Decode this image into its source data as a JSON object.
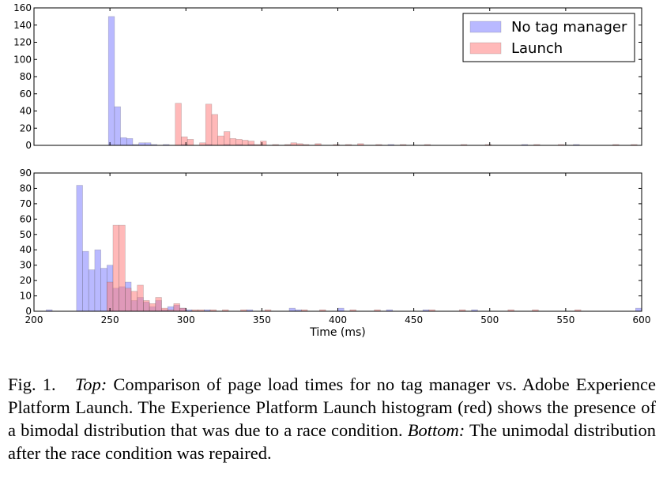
{
  "chart_data": [
    {
      "type": "bar",
      "panel": "top",
      "xlim": [
        200,
        600
      ],
      "ylim": [
        0,
        160
      ],
      "yticks": [
        0,
        20,
        40,
        60,
        80,
        100,
        120,
        140,
        160
      ],
      "xticks": [
        200,
        250,
        300,
        350,
        400,
        450,
        500,
        550,
        600
      ],
      "show_xtick_labels": false,
      "legend": {
        "position": "top-right",
        "entries": [
          "No tag manager",
          "Launch"
        ]
      },
      "series": [
        {
          "name": "No tag manager",
          "color": "#8080ff",
          "bins": [
            {
              "start": 249,
              "end": 253,
              "value": 150
            },
            {
              "start": 253,
              "end": 257,
              "value": 45
            },
            {
              "start": 257,
              "end": 261,
              "value": 9
            },
            {
              "start": 261,
              "end": 265,
              "value": 8
            },
            {
              "start": 265,
              "end": 269,
              "value": 1
            },
            {
              "start": 269,
              "end": 273,
              "value": 3
            },
            {
              "start": 273,
              "end": 277,
              "value": 3
            },
            {
              "start": 277,
              "end": 281,
              "value": 1
            },
            {
              "start": 285,
              "end": 289,
              "value": 1
            },
            {
              "start": 297,
              "end": 301,
              "value": 1
            },
            {
              "start": 313,
              "end": 317,
              "value": 1
            },
            {
              "start": 325,
              "end": 329,
              "value": 1
            },
            {
              "start": 333,
              "end": 337,
              "value": 1
            },
            {
              "start": 341,
              "end": 345,
              "value": 1
            },
            {
              "start": 433,
              "end": 437,
              "value": 1
            },
            {
              "start": 521,
              "end": 525,
              "value": 1
            },
            {
              "start": 555,
              "end": 559,
              "value": 1
            }
          ]
        },
        {
          "name": "Launch",
          "color": "#ff8080",
          "bins": [
            {
              "start": 293,
              "end": 297,
              "value": 49
            },
            {
              "start": 297,
              "end": 301,
              "value": 10
            },
            {
              "start": 301,
              "end": 305,
              "value": 7
            },
            {
              "start": 309,
              "end": 313,
              "value": 3
            },
            {
              "start": 313,
              "end": 317,
              "value": 48
            },
            {
              "start": 317,
              "end": 321,
              "value": 36
            },
            {
              "start": 321,
              "end": 325,
              "value": 11
            },
            {
              "start": 325,
              "end": 329,
              "value": 16
            },
            {
              "start": 329,
              "end": 333,
              "value": 8
            },
            {
              "start": 333,
              "end": 337,
              "value": 7
            },
            {
              "start": 337,
              "end": 341,
              "value": 6
            },
            {
              "start": 341,
              "end": 345,
              "value": 5
            },
            {
              "start": 345,
              "end": 349,
              "value": 1
            },
            {
              "start": 349,
              "end": 353,
              "value": 5
            },
            {
              "start": 357,
              "end": 361,
              "value": 1
            },
            {
              "start": 365,
              "end": 369,
              "value": 1
            },
            {
              "start": 369,
              "end": 373,
              "value": 3
            },
            {
              "start": 373,
              "end": 377,
              "value": 2
            },
            {
              "start": 377,
              "end": 381,
              "value": 1
            },
            {
              "start": 385,
              "end": 389,
              "value": 2
            },
            {
              "start": 397,
              "end": 401,
              "value": 1
            },
            {
              "start": 405,
              "end": 409,
              "value": 1
            },
            {
              "start": 413,
              "end": 417,
              "value": 2
            },
            {
              "start": 425,
              "end": 429,
              "value": 1
            },
            {
              "start": 441,
              "end": 445,
              "value": 1
            },
            {
              "start": 457,
              "end": 461,
              "value": 1
            },
            {
              "start": 481,
              "end": 485,
              "value": 1
            },
            {
              "start": 497,
              "end": 501,
              "value": 1
            },
            {
              "start": 529,
              "end": 533,
              "value": 1
            },
            {
              "start": 545,
              "end": 549,
              "value": 1
            },
            {
              "start": 581,
              "end": 585,
              "value": 1
            },
            {
              "start": 593,
              "end": 597,
              "value": 1
            }
          ]
        }
      ]
    },
    {
      "type": "bar",
      "panel": "bottom",
      "xlabel": "Time (ms)",
      "xlim": [
        200,
        600
      ],
      "ylim": [
        0,
        90
      ],
      "yticks": [
        0,
        10,
        20,
        30,
        40,
        50,
        60,
        70,
        80,
        90
      ],
      "xticks": [
        200,
        250,
        300,
        350,
        400,
        450,
        500,
        550,
        600
      ],
      "show_xtick_labels": true,
      "series": [
        {
          "name": "No tag manager",
          "color": "#8080ff",
          "bins": [
            {
              "start": 208,
              "end": 212,
              "value": 1
            },
            {
              "start": 228,
              "end": 232,
              "value": 82
            },
            {
              "start": 232,
              "end": 236,
              "value": 39
            },
            {
              "start": 236,
              "end": 240,
              "value": 27
            },
            {
              "start": 240,
              "end": 244,
              "value": 40
            },
            {
              "start": 244,
              "end": 248,
              "value": 28
            },
            {
              "start": 248,
              "end": 252,
              "value": 30
            },
            {
              "start": 252,
              "end": 256,
              "value": 15
            },
            {
              "start": 256,
              "end": 260,
              "value": 16
            },
            {
              "start": 260,
              "end": 264,
              "value": 19
            },
            {
              "start": 264,
              "end": 268,
              "value": 7
            },
            {
              "start": 268,
              "end": 272,
              "value": 9
            },
            {
              "start": 272,
              "end": 276,
              "value": 6
            },
            {
              "start": 276,
              "end": 280,
              "value": 3
            },
            {
              "start": 280,
              "end": 284,
              "value": 7
            },
            {
              "start": 284,
              "end": 288,
              "value": 1
            },
            {
              "start": 288,
              "end": 292,
              "value": 3
            },
            {
              "start": 292,
              "end": 296,
              "value": 4
            },
            {
              "start": 296,
              "end": 300,
              "value": 2
            },
            {
              "start": 300,
              "end": 304,
              "value": 1
            },
            {
              "start": 312,
              "end": 316,
              "value": 1
            },
            {
              "start": 340,
              "end": 344,
              "value": 1
            },
            {
              "start": 368,
              "end": 372,
              "value": 2
            },
            {
              "start": 372,
              "end": 376,
              "value": 1
            },
            {
              "start": 400,
              "end": 404,
              "value": 2
            },
            {
              "start": 432,
              "end": 436,
              "value": 1
            },
            {
              "start": 456,
              "end": 460,
              "value": 1
            },
            {
              "start": 488,
              "end": 492,
              "value": 1
            },
            {
              "start": 596,
              "end": 600,
              "value": 2
            }
          ]
        },
        {
          "name": "Launch",
          "color": "#ff8080",
          "bins": [
            {
              "start": 248,
              "end": 252,
              "value": 19
            },
            {
              "start": 252,
              "end": 256,
              "value": 56
            },
            {
              "start": 256,
              "end": 260,
              "value": 56
            },
            {
              "start": 260,
              "end": 264,
              "value": 15
            },
            {
              "start": 264,
              "end": 268,
              "value": 13
            },
            {
              "start": 268,
              "end": 272,
              "value": 17
            },
            {
              "start": 272,
              "end": 276,
              "value": 7
            },
            {
              "start": 276,
              "end": 280,
              "value": 5
            },
            {
              "start": 280,
              "end": 284,
              "value": 9
            },
            {
              "start": 284,
              "end": 288,
              "value": 2
            },
            {
              "start": 288,
              "end": 292,
              "value": 1
            },
            {
              "start": 292,
              "end": 296,
              "value": 5
            },
            {
              "start": 296,
              "end": 300,
              "value": 2
            },
            {
              "start": 304,
              "end": 308,
              "value": 1
            },
            {
              "start": 308,
              "end": 312,
              "value": 1
            },
            {
              "start": 316,
              "end": 320,
              "value": 1
            },
            {
              "start": 324,
              "end": 328,
              "value": 1
            },
            {
              "start": 336,
              "end": 340,
              "value": 1
            },
            {
              "start": 352,
              "end": 356,
              "value": 1
            },
            {
              "start": 376,
              "end": 380,
              "value": 1
            },
            {
              "start": 388,
              "end": 392,
              "value": 1
            },
            {
              "start": 408,
              "end": 412,
              "value": 1
            },
            {
              "start": 424,
              "end": 428,
              "value": 1
            },
            {
              "start": 460,
              "end": 464,
              "value": 1
            },
            {
              "start": 480,
              "end": 484,
              "value": 1
            },
            {
              "start": 512,
              "end": 516,
              "value": 1
            },
            {
              "start": 528,
              "end": 532,
              "value": 1
            },
            {
              "start": 556,
              "end": 560,
              "value": 1
            }
          ]
        }
      ]
    }
  ],
  "caption": {
    "label": "Fig. 1.",
    "top_label": "Top:",
    "top_text": "Comparison of page load times for no tag manager vs. Adobe Experience Platform Launch. The Experience Platform Launch histogram (red) shows the presence of a bimodal distribution that was due to a race condition.",
    "bottom_label": "Bottom:",
    "bottom_text": "The unimodal distribution after the race condition was repaired."
  }
}
